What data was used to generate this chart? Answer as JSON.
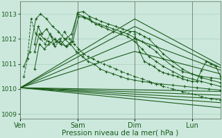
{
  "xlabel": "Pression niveau de la mer( hPa )",
  "xlabel_fontsize": 7.5,
  "background_color": "#cce8dd",
  "plot_bg_color": "#cce8dd",
  "grid_color": "#a0c8b8",
  "line_color": "#1a5c1a",
  "tick_label_color": "#1a5c1a",
  "ylim": [
    1008.8,
    1013.5
  ],
  "yticks": [
    1009,
    1010,
    1011,
    1012,
    1013
  ],
  "ytick_fontsize": 6.5,
  "xtick_fontsize": 7,
  "xtick_positions": [
    0,
    48,
    96,
    144
  ],
  "xtick_labels": [
    "Ven",
    "Sam",
    "Dim",
    "Lun"
  ],
  "total_hours": 168,
  "smooth_lines": [
    {
      "x": [
        0,
        168
      ],
      "y": [
        1010.05,
        1009.25
      ]
    },
    {
      "x": [
        0,
        168
      ],
      "y": [
        1010.05,
        1009.45
      ]
    },
    {
      "x": [
        0,
        168
      ],
      "y": [
        1010.05,
        1009.6
      ]
    },
    {
      "x": [
        0,
        168
      ],
      "y": [
        1010.05,
        1009.75
      ]
    },
    {
      "x": [
        0,
        168
      ],
      "y": [
        1010.05,
        1009.9
      ]
    },
    {
      "x": [
        0,
        96,
        168
      ],
      "y": [
        1010.05,
        1011.5,
        1010.6
      ]
    },
    {
      "x": [
        0,
        96,
        168
      ],
      "y": [
        1010.05,
        1012.0,
        1010.75
      ]
    },
    {
      "x": [
        0,
        96,
        168
      ],
      "y": [
        1010.05,
        1012.5,
        1010.85
      ]
    },
    {
      "x": [
        0,
        96,
        168
      ],
      "y": [
        1010.05,
        1012.8,
        1010.95
      ]
    }
  ],
  "jagged_lines": [
    {
      "x": [
        3,
        6,
        9,
        13,
        17,
        21,
        25,
        29,
        33,
        37,
        41,
        45,
        49,
        53,
        57,
        61,
        65,
        70,
        75,
        80,
        85,
        90,
        96,
        102,
        108,
        114,
        120,
        128,
        136,
        144,
        152,
        160,
        168
      ],
      "y": [
        1010.5,
        1011.2,
        1012.8,
        1012.2,
        1012.0,
        1011.8,
        1012.2,
        1011.7,
        1011.9,
        1012.3,
        1012.0,
        1011.8,
        1011.6,
        1011.4,
        1011.3,
        1011.2,
        1011.1,
        1011.0,
        1010.9,
        1010.8,
        1010.7,
        1010.6,
        1010.5,
        1010.4,
        1010.3,
        1010.2,
        1010.1,
        1010.0,
        1009.9,
        1009.8,
        1009.7,
        1009.6,
        1009.55
      ],
      "dashed": true
    },
    {
      "x": [
        3,
        8,
        13,
        17,
        22,
        27,
        32,
        37,
        42,
        47,
        52,
        57,
        62,
        67,
        72,
        78,
        84,
        90,
        96,
        102,
        110,
        118,
        128,
        138,
        148,
        158,
        168
      ],
      "y": [
        1010.9,
        1011.5,
        1012.8,
        1013.0,
        1012.8,
        1012.5,
        1012.3,
        1012.0,
        1011.8,
        1011.5,
        1011.3,
        1011.1,
        1011.0,
        1010.8,
        1010.7,
        1010.6,
        1010.5,
        1010.4,
        1010.35,
        1010.3,
        1010.25,
        1010.2,
        1010.15,
        1010.1,
        1010.05,
        1010.0,
        1009.95
      ],
      "dashed": false
    },
    {
      "x": [
        12,
        15,
        18,
        22,
        26,
        30,
        34,
        38,
        43,
        48,
        53,
        58,
        63,
        68,
        73,
        78,
        84,
        90,
        96,
        102,
        108,
        114,
        120,
        128,
        136,
        144,
        152,
        160,
        168
      ],
      "y": [
        1011.8,
        1012.5,
        1012.2,
        1012.4,
        1012.1,
        1011.9,
        1011.8,
        1012.0,
        1012.2,
        1013.0,
        1012.9,
        1012.8,
        1012.6,
        1012.5,
        1012.4,
        1012.3,
        1012.2,
        1012.1,
        1011.9,
        1011.6,
        1011.3,
        1011.1,
        1010.9,
        1010.7,
        1010.5,
        1010.4,
        1010.3,
        1010.2,
        1010.1
      ],
      "dashed": false
    },
    {
      "x": [
        12,
        16,
        20,
        24,
        28,
        33,
        38,
        43,
        48,
        53,
        58,
        63,
        68,
        74,
        80,
        86,
        92,
        96,
        100,
        104,
        108,
        114,
        120,
        128,
        136,
        144,
        152,
        160,
        168
      ],
      "y": [
        1011.5,
        1012.2,
        1012.0,
        1011.9,
        1011.8,
        1012.0,
        1011.7,
        1011.9,
        1013.05,
        1013.1,
        1012.9,
        1012.8,
        1012.7,
        1012.6,
        1012.5,
        1012.4,
        1012.3,
        1012.3,
        1012.2,
        1012.1,
        1012.0,
        1011.7,
        1011.4,
        1011.1,
        1010.8,
        1010.6,
        1010.45,
        1010.35,
        1010.25
      ],
      "dashed": false
    },
    {
      "x": [
        12,
        16,
        20,
        24,
        29,
        34,
        39,
        44,
        49,
        54,
        60,
        66,
        72,
        78,
        84,
        90,
        96,
        102,
        108,
        114,
        120,
        128,
        136,
        144,
        152,
        160,
        168
      ],
      "y": [
        1010.8,
        1011.8,
        1011.6,
        1011.8,
        1012.0,
        1011.8,
        1011.7,
        1011.9,
        1012.9,
        1012.85,
        1012.7,
        1012.6,
        1012.5,
        1012.4,
        1012.3,
        1012.2,
        1012.05,
        1011.9,
        1011.7,
        1011.5,
        1011.2,
        1010.9,
        1010.7,
        1010.6,
        1010.5,
        1010.45,
        1010.4
      ],
      "dashed": false
    },
    {
      "x": [
        96,
        100,
        104,
        108,
        112,
        116,
        120,
        124,
        128,
        132,
        136,
        140,
        144,
        148,
        152,
        156,
        160,
        164,
        168
      ],
      "y": [
        1012.2,
        1011.5,
        1011.1,
        1011.0,
        1010.9,
        1010.75,
        1010.65,
        1010.6,
        1010.55,
        1010.5,
        1010.4,
        1010.35,
        1010.3,
        1010.3,
        1010.75,
        1011.1,
        1011.0,
        1010.9,
        1010.5
      ],
      "dashed": false
    }
  ]
}
